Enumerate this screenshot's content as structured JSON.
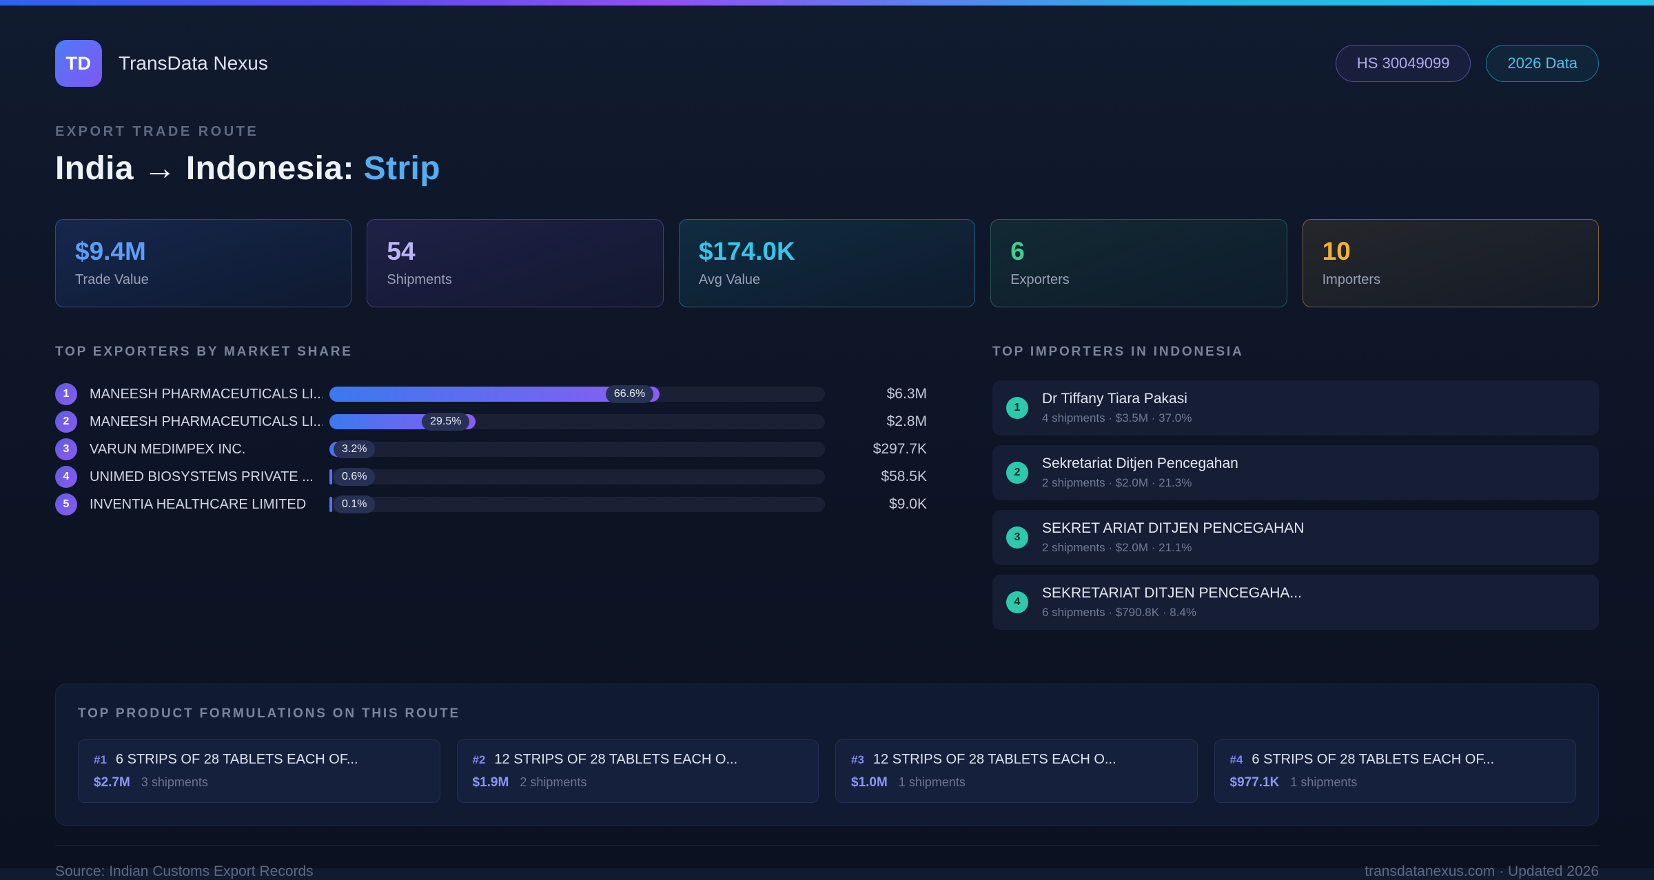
{
  "theme": {
    "topbar_gradient": [
      "#2e63f2",
      "#9150f2",
      "#27c3ec"
    ],
    "bar_gradient_start": "#3b79f0",
    "bar_gradient_end": "#8a5cf4",
    "importer_rank_color": "#2cc9ad",
    "exporter_rank_color": "#6f5ce8"
  },
  "header": {
    "logo_text": "TD",
    "app_name": "TransData Nexus",
    "hs_badge": "HS 30049099",
    "year_badge": "2026 Data"
  },
  "hero": {
    "eyebrow": "EXPORT TRADE ROUTE",
    "title_prefix": "India → Indonesia: ",
    "title_accent": "Strip"
  },
  "stats": [
    {
      "value": "$9.4M",
      "label": "Trade Value",
      "color": "#5d9df6"
    },
    {
      "value": "54",
      "label": "Shipments",
      "color": "#bdb4f5"
    },
    {
      "value": "$174.0K",
      "label": "Avg Value",
      "color": "#35c6ea"
    },
    {
      "value": "6",
      "label": "Exporters",
      "color": "#3ecf8e"
    },
    {
      "value": "10",
      "label": "Importers",
      "color": "#f2b233"
    }
  ],
  "exporters": {
    "section_title": "TOP EXPORTERS BY MARKET SHARE",
    "items": [
      {
        "rank": "1",
        "name": "MANEESH PHARMACEUTICALS LI...",
        "share": 66.6,
        "share_label": "66.6%",
        "value": "$6.3M"
      },
      {
        "rank": "2",
        "name": "MANEESH PHARMACEUTICALS LI...",
        "share": 29.5,
        "share_label": "29.5%",
        "value": "$2.8M"
      },
      {
        "rank": "3",
        "name": "VARUN MEDIMPEX INC.",
        "share": 3.2,
        "share_label": "3.2%",
        "value": "$297.7K"
      },
      {
        "rank": "4",
        "name": "UNIMED BIOSYSTEMS PRIVATE ...",
        "share": 0.6,
        "share_label": "0.6%",
        "value": "$58.5K"
      },
      {
        "rank": "5",
        "name": "INVENTIA HEALTHCARE LIMITED",
        "share": 0.1,
        "share_label": "0.1%",
        "value": "$9.0K"
      }
    ]
  },
  "importers": {
    "section_title": "TOP IMPORTERS IN INDONESIA",
    "items": [
      {
        "rank": "1",
        "name": "Dr Tiffany Tiara Pakasi",
        "details": "4 shipments · $3.5M · 37.0%"
      },
      {
        "rank": "2",
        "name": "Sekretariat Ditjen Pencegahan",
        "details": "2 shipments · $2.0M · 21.3%"
      },
      {
        "rank": "3",
        "name": "SEKRET ARIAT DITJEN PENCEGAHAN",
        "details": "2 shipments · $2.0M · 21.1%"
      },
      {
        "rank": "4",
        "name": "SEKRETARIAT DITJEN PENCEGAHA...",
        "details": "6 shipments · $790.8K · 8.4%"
      }
    ]
  },
  "products": {
    "section_title": "TOP PRODUCT FORMULATIONS ON THIS ROUTE",
    "items": [
      {
        "rank": "#1",
        "name": "6 STRIPS OF 28 TABLETS EACH OF...",
        "value": "$2.7M",
        "shipments": "3 shipments"
      },
      {
        "rank": "#2",
        "name": "12 STRIPS OF 28 TABLETS EACH O...",
        "value": "$1.9M",
        "shipments": "2 shipments"
      },
      {
        "rank": "#3",
        "name": "12 STRIPS OF 28 TABLETS EACH O...",
        "value": "$1.0M",
        "shipments": "1 shipments"
      },
      {
        "rank": "#4",
        "name": "6 STRIPS OF 28 TABLETS EACH OF...",
        "value": "$977.1K",
        "shipments": "1 shipments"
      }
    ]
  },
  "footer": {
    "source": "Source: Indian Customs Export Records",
    "site": "transdatanexus.com · Updated 2026"
  }
}
